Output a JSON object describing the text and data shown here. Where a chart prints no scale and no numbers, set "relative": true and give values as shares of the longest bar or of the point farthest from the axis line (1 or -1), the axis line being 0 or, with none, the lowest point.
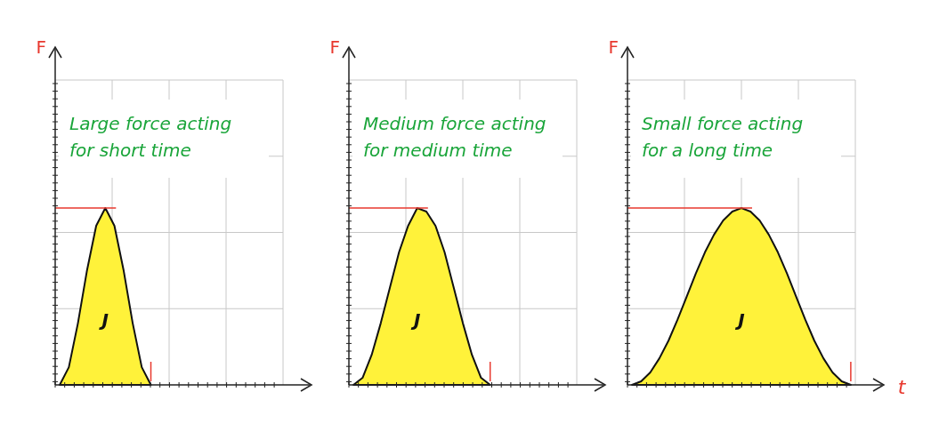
{
  "chart_data": [
    {
      "type": "area",
      "relative": true,
      "ylabel": "F",
      "grid": true,
      "categories": [
        null,
        null,
        null,
        null,
        null,
        null,
        null,
        null,
        null,
        null,
        null,
        null,
        null,
        null,
        null,
        null,
        null,
        null,
        null,
        null,
        null,
        null,
        null,
        null,
        null
      ],
      "series": [
        {
          "color": "#fff23a",
          "values": [
            0,
            0.1,
            0.35,
            0.65,
            0.9,
            1,
            0.9,
            0.65,
            0.35,
            0.1,
            0,
            null,
            null,
            null,
            null,
            null,
            null,
            null,
            null,
            null,
            null,
            null,
            null,
            null,
            null
          ]
        }
      ],
      "annotations": [
        "Large force acting\nfor short time",
        "J"
      ]
    },
    {
      "type": "area",
      "relative": true,
      "ylabel": "F",
      "grid": true,
      "categories": [
        null,
        null,
        null,
        null,
        null,
        null,
        null,
        null,
        null,
        null,
        null,
        null,
        null,
        null,
        null,
        null,
        null,
        null,
        null,
        null,
        null,
        null,
        null,
        null,
        null
      ],
      "series": [
        {
          "color": "#fff23a",
          "values": [
            0,
            0.04,
            0.17,
            0.35,
            0.55,
            0.75,
            0.9,
            1,
            0.98,
            0.9,
            0.75,
            0.55,
            0.35,
            0.17,
            0.04,
            0,
            null,
            null,
            null,
            null,
            null,
            null,
            null,
            null,
            null
          ]
        }
      ],
      "annotations": [
        "Medium force acting\nfor medium time",
        "J"
      ]
    },
    {
      "type": "area",
      "relative": true,
      "ylabel": "F",
      "xlabel": "t",
      "grid": true,
      "categories": [
        null,
        null,
        null,
        null,
        null,
        null,
        null,
        null,
        null,
        null,
        null,
        null,
        null,
        null,
        null,
        null,
        null,
        null,
        null,
        null,
        null,
        null,
        null,
        null,
        null
      ],
      "series": [
        {
          "color": "#fff23a",
          "values": [
            0,
            0.02,
            0.07,
            0.15,
            0.25,
            0.37,
            0.5,
            0.63,
            0.75,
            0.85,
            0.93,
            0.98,
            1,
            0.98,
            0.93,
            0.85,
            0.75,
            0.63,
            0.5,
            0.37,
            0.25,
            0.15,
            0.07,
            0.02,
            0
          ]
        }
      ],
      "annotations": [
        "Small force acting\nfor a long time",
        "J"
      ]
    }
  ]
}
